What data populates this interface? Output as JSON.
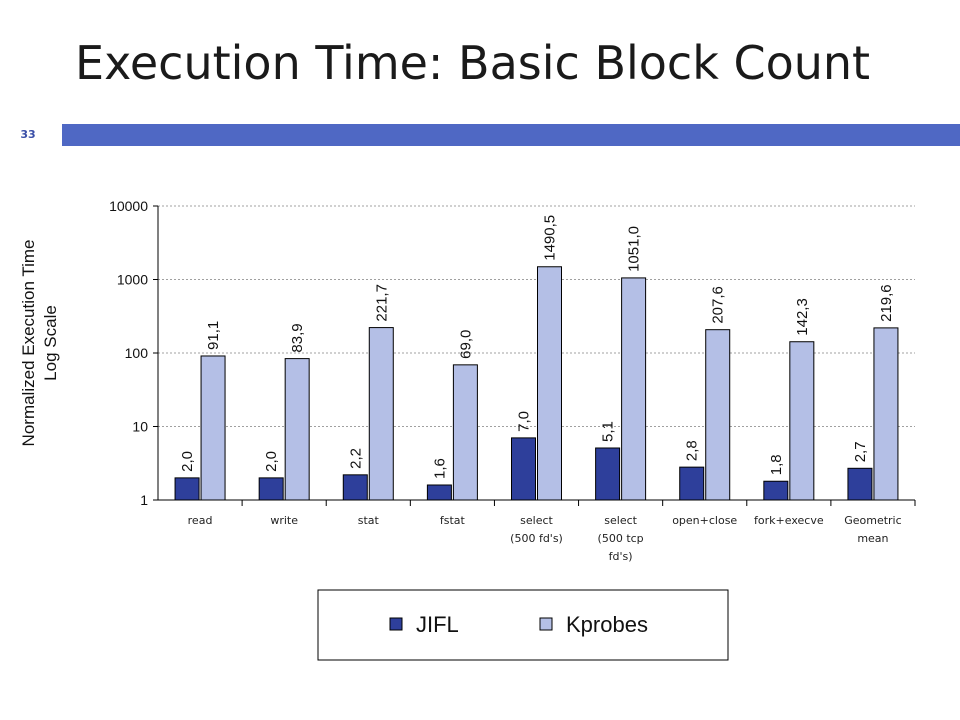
{
  "slide": {
    "title": "Execution Time: Basic Block Count",
    "page_number": "33",
    "accent_color": "#4f68c4"
  },
  "chart_data": {
    "type": "bar",
    "ylabel_lines": [
      "Normalized Execution Time",
      "Log Scale"
    ],
    "yscale": "log",
    "ylim": [
      1,
      10000
    ],
    "yticks": [
      "1",
      "10",
      "100",
      "1000",
      "10000"
    ],
    "grid": true,
    "categories": [
      [
        "read"
      ],
      [
        "write"
      ],
      [
        "stat"
      ],
      [
        "fstat"
      ],
      [
        "select",
        "(500 fd's)"
      ],
      [
        "select",
        "(500 tcp",
        "fd's)"
      ],
      [
        "open+close"
      ],
      [
        "fork+execve"
      ],
      [
        "Geometric",
        "mean"
      ]
    ],
    "series": [
      {
        "name": "JIFL",
        "color": "#2e3f9b",
        "values": [
          2.0,
          2.0,
          2.2,
          1.6,
          7.0,
          5.1,
          2.8,
          1.8,
          2.7
        ],
        "labels": [
          "2,0",
          "2,0",
          "2,2",
          "1,6",
          "7,0",
          "5,1",
          "2,8",
          "1,8",
          "2,7"
        ]
      },
      {
        "name": "Kprobes",
        "color": "#b4bfe6",
        "values": [
          91.1,
          83.9,
          221.7,
          69.0,
          1490.5,
          1051.0,
          207.6,
          142.3,
          219.6
        ],
        "labels": [
          "91,1",
          "83,9",
          "221,7",
          "69,0",
          "1490,5",
          "1051,0",
          "207,6",
          "142,3",
          "219,6"
        ]
      }
    ],
    "legend_position": "bottom"
  }
}
